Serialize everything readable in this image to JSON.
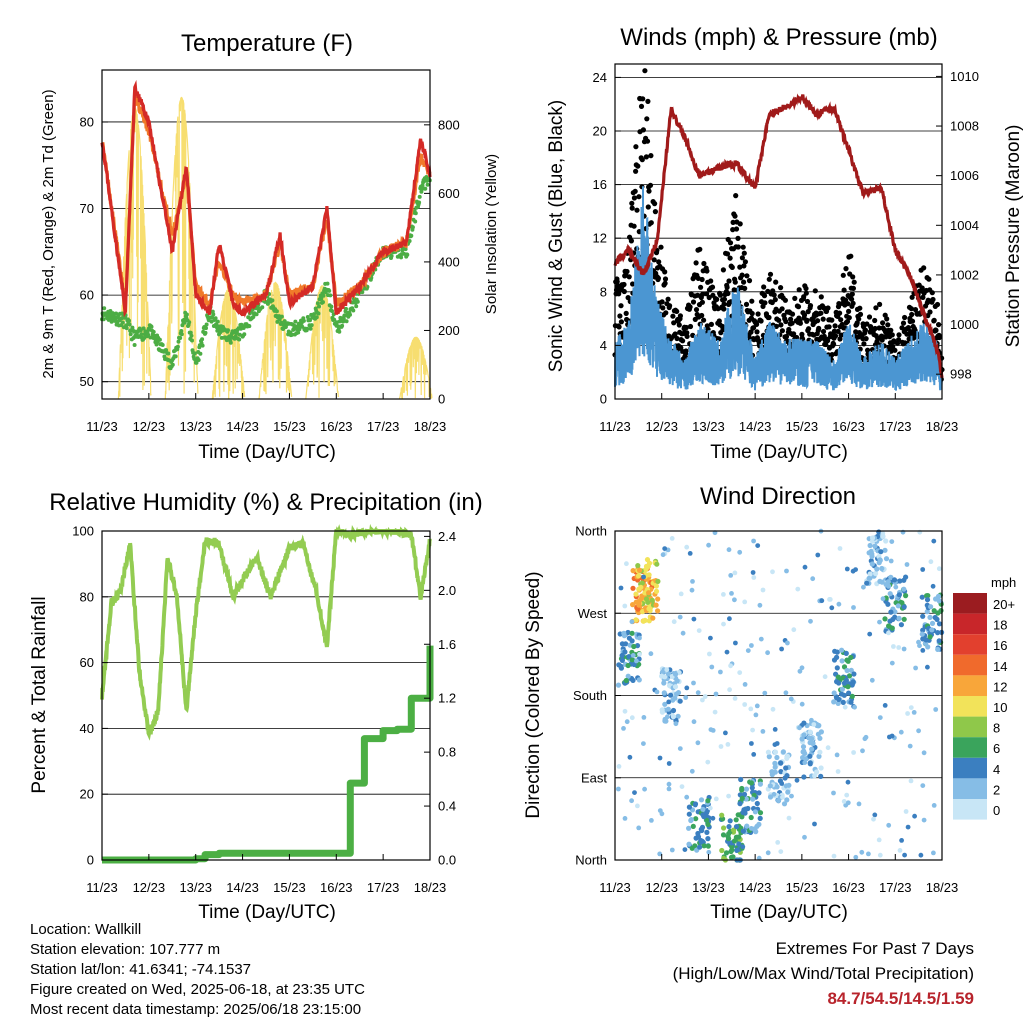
{
  "colors": {
    "temp2m": "#d42a26",
    "temp9m": "#f07a2a",
    "dewpoint": "#4cad44",
    "solar": "#f7de70",
    "wind": "#4b96d2",
    "gust": "#000000",
    "pressure": "#a01a1a",
    "rh": "#93cc52",
    "precip": "#4caf44",
    "extremes": "#b8242c"
  },
  "x_axis": {
    "label": "Time (Day/UTC)",
    "ticks": [
      "11/23",
      "12/23",
      "13/23",
      "14/23",
      "15/23",
      "16/23",
      "17/23",
      "18/23"
    ]
  },
  "temperature_panel": {
    "title": "Temperature (F)",
    "left_label": "2m & 9m T (Red, Orange) & 2m Td (Green)",
    "right_label": "Solar Insolation (Yellow)",
    "left_ticks": [
      "50",
      "60",
      "70",
      "80"
    ],
    "right_ticks": [
      "0",
      "200",
      "400",
      "600",
      "800"
    ]
  },
  "wind_panel": {
    "title": "Winds (mph) & Pressure (mb)",
    "left_label": "Sonic Wind & Gust (Blue, Black)",
    "right_label": "Station Pressure (Maroon)",
    "left_ticks": [
      "0",
      "4",
      "8",
      "12",
      "16",
      "20",
      "24"
    ],
    "right_ticks": [
      "998",
      "1000",
      "1002",
      "1004",
      "1006",
      "1008",
      "1010"
    ]
  },
  "rh_panel": {
    "title": "Relative Humidity (%) & Precipitation (in)",
    "left_label": "Percent & Total Rainfall",
    "left_ticks": [
      "0",
      "20",
      "40",
      "60",
      "80",
      "100"
    ],
    "right_ticks": [
      "0.0",
      "0.4",
      "0.8",
      "1.2",
      "1.6",
      "2.0",
      "2.4"
    ]
  },
  "direction_panel": {
    "title": "Wind Direction",
    "left_label": "Direction (Colored By Speed)",
    "left_ticks": [
      "North",
      "East",
      "South",
      "West",
      "North"
    ],
    "legend_title": "mph",
    "legend_labels": [
      "20+",
      "18",
      "16",
      "14",
      "12",
      "10",
      "8",
      "6",
      "4",
      "2",
      "0"
    ],
    "legend_colors": [
      "#9b1c20",
      "#c8262a",
      "#e2402e",
      "#f06a2c",
      "#f8a63a",
      "#f2e35a",
      "#8fc84a",
      "#3aa45c",
      "#3b7fc0",
      "#86bde6",
      "#c8e6f6"
    ]
  },
  "footer": {
    "location": "Location: Wallkill",
    "elevation": "Station elevation: 107.777 m",
    "latlon": "Station lat/lon: 41.6341; -74.1537",
    "created": "Figure created on Wed, 2025-06-18, at 23:35 UTC",
    "recent": "Most recent data timestamp: 2025/06/18 23:15:00",
    "extremes_title": "Extremes For Past 7 Days",
    "extremes_sub": "(High/Low/Max Wind/Total Precipitation)",
    "extremes_values": "84.7/54.5/14.5/1.59"
  },
  "chart_data": [
    {
      "type": "line",
      "x": [
        11,
        11.5,
        11.7,
        12,
        12.5,
        12.8,
        13,
        13.3,
        13.5,
        13.8,
        14,
        14.5,
        14.8,
        15,
        15.5,
        15.8,
        16,
        16.5,
        17,
        17.5,
        17.8,
        18
      ],
      "series": [
        {
          "name": "2m T",
          "axis": "left",
          "values": [
            78,
            58,
            84,
            80,
            65,
            75,
            60,
            58,
            66,
            59,
            58,
            60,
            67,
            59,
            61,
            70,
            58,
            61,
            65,
            66,
            78,
            74
          ]
        },
        {
          "name": "9m T",
          "axis": "left",
          "values": [
            78,
            59,
            83,
            79,
            67,
            74,
            61,
            59,
            64,
            60,
            59,
            60,
            66,
            60,
            61,
            69,
            59,
            61,
            65,
            66,
            76,
            74
          ]
        },
        {
          "name": "2m Td",
          "axis": "left",
          "values": [
            58,
            57,
            55,
            56,
            52,
            58,
            52,
            58,
            56,
            55,
            56,
            60,
            57,
            56,
            57,
            61,
            56,
            60,
            65,
            65,
            72,
            74
          ]
        }
      ],
      "solar": {
        "name": "Solar Insolation",
        "axis": "right",
        "days": [
          11.7,
          12.7,
          13.7,
          14.7,
          15.7,
          16.7,
          17.7
        ],
        "peaks": [
          850,
          880,
          320,
          340,
          330,
          0,
          180
        ]
      },
      "ylim_left": [
        48,
        86
      ],
      "ylim_right": [
        0,
        960
      ],
      "xlim": [
        11,
        18
      ]
    },
    {
      "type": "line",
      "x": [
        11,
        11.3,
        11.6,
        11.9,
        12.2,
        12.5,
        12.8,
        13.2,
        13.6,
        14,
        14.3,
        14.7,
        15,
        15.3,
        15.7,
        16,
        16.3,
        16.7,
        17,
        17.3,
        17.6,
        17.9,
        18
      ],
      "series": [
        {
          "name": "Wind",
          "axis": "left",
          "values": [
            3,
            4,
            11,
            5,
            3,
            2,
            4,
            3,
            6,
            2,
            4,
            3,
            3,
            3,
            2,
            4,
            2,
            3,
            2,
            3,
            4,
            3,
            1
          ]
        },
        {
          "name": "Gust",
          "axis": "left",
          "values": [
            6,
            8,
            19,
            9,
            5,
            4,
            8,
            5,
            11,
            4,
            7,
            5,
            6,
            6,
            4,
            8,
            4,
            5,
            3,
            5,
            7,
            5,
            2
          ]
        },
        {
          "name": "Pressure",
          "axis": "right",
          "values": [
            1002.5,
            1003,
            1002,
            1003.3,
            1008.7,
            1007.5,
            1006,
            1006.3,
            1006.5,
            1005.5,
            1008.5,
            1008.8,
            1009.2,
            1008.5,
            1008.7,
            1007,
            1005.3,
            1005.5,
            1003,
            1002,
            1000.5,
            999,
            997.8
          ]
        }
      ],
      "ylim_left": [
        0,
        25
      ],
      "ylim_right": [
        997,
        1010.5
      ],
      "xlim": [
        11,
        18
      ]
    },
    {
      "type": "line",
      "x": [
        11,
        11.2,
        11.4,
        11.6,
        11.8,
        12,
        12.2,
        12.4,
        12.6,
        12.8,
        13,
        13.2,
        13.5,
        13.8,
        14,
        14.3,
        14.6,
        15,
        15.3,
        15.6,
        15.8,
        16,
        16.3,
        16.6,
        17,
        17.3,
        17.6,
        17.8,
        18
      ],
      "series": [
        {
          "name": "RH",
          "axis": "left",
          "values": [
            50,
            78,
            82,
            96,
            57,
            38,
            45,
            92,
            80,
            45,
            75,
            97,
            96,
            80,
            85,
            92,
            80,
            95,
            96,
            80,
            65,
            100,
            99,
            100,
            100,
            100,
            99,
            80,
            97
          ]
        },
        {
          "name": "Total Rainfall",
          "axis": "right",
          "values": [
            0,
            0,
            0,
            0,
            0,
            0,
            0,
            0,
            0,
            0,
            0.01,
            0.04,
            0.05,
            0.05,
            0.05,
            0.05,
            0.05,
            0.05,
            0.05,
            0.05,
            0.05,
            0.05,
            0.57,
            0.9,
            0.96,
            0.97,
            1.2,
            1.2,
            1.59
          ]
        }
      ],
      "ylim_left": [
        0,
        100
      ],
      "ylim_right": [
        0,
        2.44
      ],
      "xlim": [
        11,
        18
      ]
    },
    {
      "type": "scatter",
      "x_label": "Time (Day/UTC)",
      "y_labels": [
        "North",
        "East",
        "South",
        "West",
        "North"
      ],
      "clusters": [
        {
          "day": 11.3,
          "dir": 220,
          "speed": 4
        },
        {
          "day": 11.6,
          "dir": 290,
          "speed": 12
        },
        {
          "day": 11.7,
          "dir": 300,
          "speed": 10
        },
        {
          "day": 12.2,
          "dir": 180,
          "speed": 2
        },
        {
          "day": 12.8,
          "dir": 40,
          "speed": 4
        },
        {
          "day": 13.5,
          "dir": 20,
          "speed": 6
        },
        {
          "day": 13.9,
          "dir": 60,
          "speed": 4
        },
        {
          "day": 14.5,
          "dir": 90,
          "speed": 2
        },
        {
          "day": 15.2,
          "dir": 120,
          "speed": 2
        },
        {
          "day": 15.9,
          "dir": 200,
          "speed": 4
        },
        {
          "day": 16.6,
          "dir": 330,
          "speed": 2
        },
        {
          "day": 17.0,
          "dir": 280,
          "speed": 4
        },
        {
          "day": 17.8,
          "dir": 260,
          "speed": 4
        }
      ],
      "ylim": [
        0,
        360
      ],
      "xlim": [
        11,
        18
      ]
    }
  ]
}
